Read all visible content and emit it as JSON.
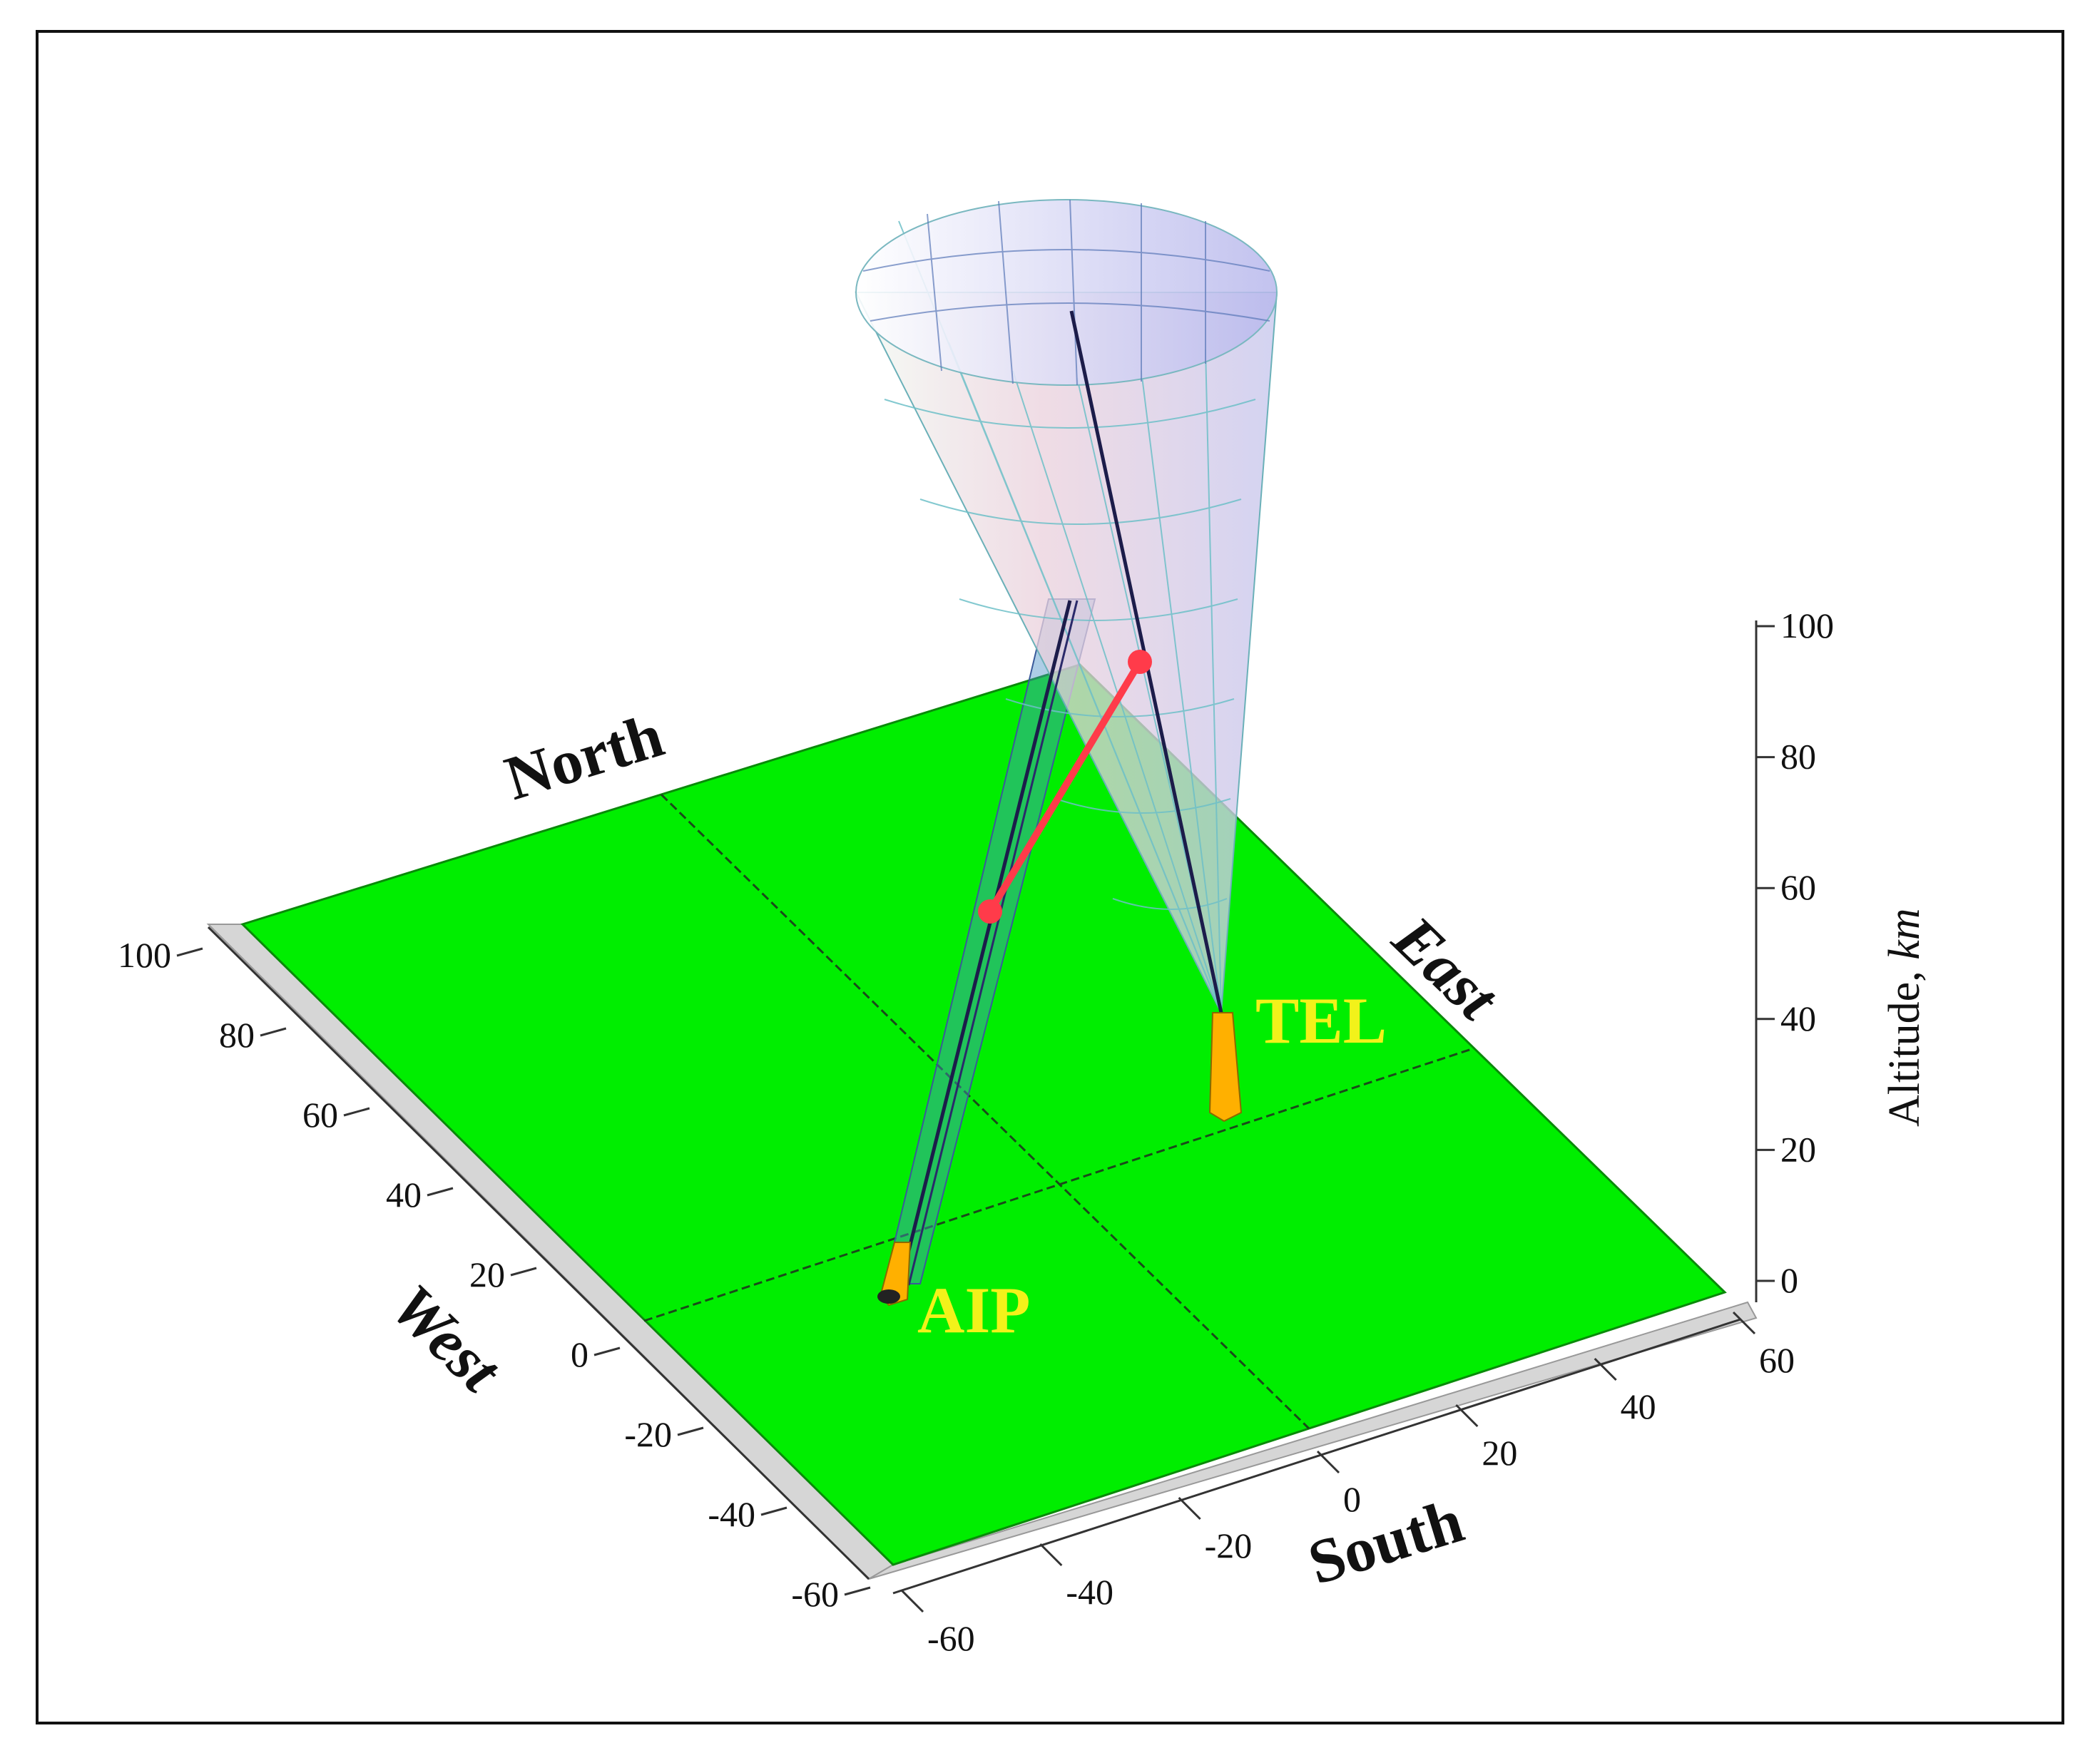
{
  "figure": {
    "directions": {
      "north": "North",
      "east": "East",
      "south": "South",
      "west": "West"
    },
    "sites": {
      "tel": "TEL",
      "aip": "AIP"
    },
    "altitude_axis": {
      "label": "Altitude, ",
      "unit": "km",
      "ticks": [
        "0",
        "20",
        "40",
        "60",
        "80",
        "100"
      ]
    },
    "west_axis_ticks": [
      "-60",
      "-40",
      "-20",
      "0",
      "20",
      "40",
      "60",
      "80",
      "100"
    ],
    "south_axis_ticks": [
      "-60",
      "-40",
      "-20",
      "0",
      "20",
      "40",
      "60"
    ],
    "colors": {
      "ground": "#00ee00",
      "cone_fill": "#e8c6d6",
      "cone_grid": "#7ec8c8",
      "sight_line": "#1c1c4a",
      "connector": "#ff3b4a",
      "site_label": "#f2f21a",
      "camera_marker": "#ffb000"
    }
  }
}
